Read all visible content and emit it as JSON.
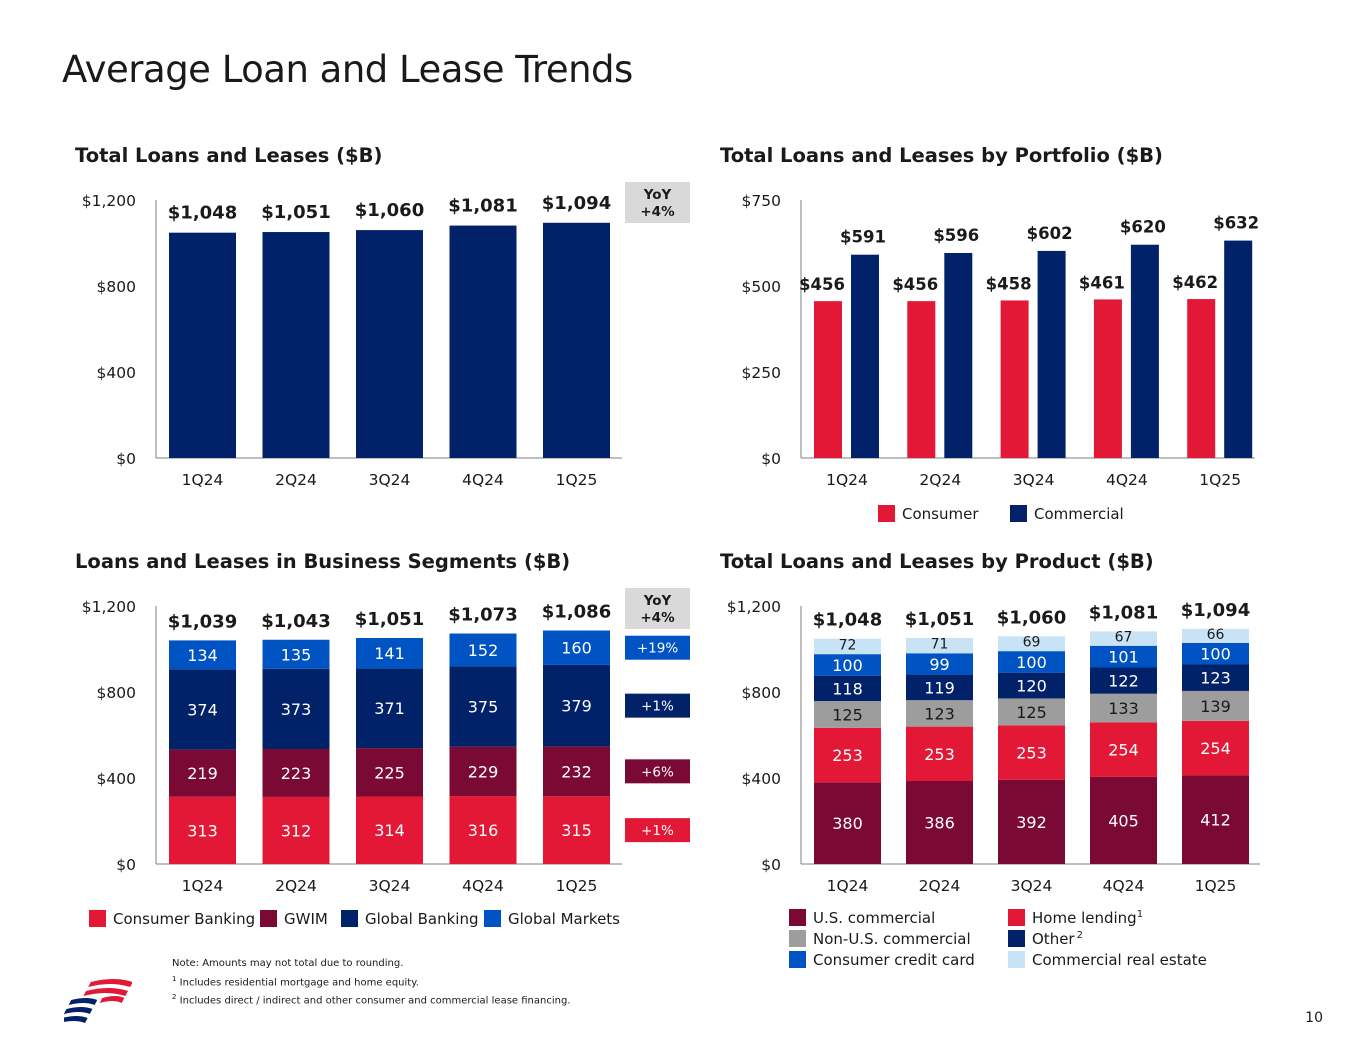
{
  "page": {
    "title": "Average Loan and Lease Trends",
    "page_number": "10",
    "notes": {
      "line1": "Note: Amounts may not total due to rounding.",
      "fn1_mark": "1",
      "fn1_text": "Includes residential mortgage and home equity.",
      "fn2_mark": "2",
      "fn2_text": "Includes direct / indirect and other consumer and commercial lease financing."
    },
    "logo_icon": "bank-flag-logo-icon"
  },
  "chart_data": [
    {
      "id": "total",
      "type": "bar",
      "title": "Total Loans and Leases ($B)",
      "categories": [
        "1Q24",
        "2Q24",
        "3Q24",
        "4Q24",
        "1Q25"
      ],
      "values": [
        1048,
        1051,
        1060,
        1081,
        1094
      ],
      "value_labels": [
        "$1,048",
        "$1,051",
        "$1,060",
        "$1,081",
        "$1,094"
      ],
      "ylim": [
        0,
        1200
      ],
      "yticks": [
        0,
        400,
        800,
        1200
      ],
      "ytick_labels": [
        "$0",
        "$400",
        "$800",
        "$1,200"
      ],
      "color": "#012169",
      "yoy": {
        "label": "YoY",
        "value": "+4%"
      }
    },
    {
      "id": "portfolio",
      "type": "bar",
      "title": "Total Loans and Leases by Portfolio ($B)",
      "categories": [
        "1Q24",
        "2Q24",
        "3Q24",
        "4Q24",
        "1Q25"
      ],
      "ylim": [
        0,
        750
      ],
      "yticks": [
        0,
        250,
        500,
        750
      ],
      "ytick_labels": [
        "$0",
        "$250",
        "$500",
        "$750"
      ],
      "series": [
        {
          "name": "Consumer",
          "color": "#e31837",
          "values": [
            456,
            456,
            458,
            461,
            462
          ],
          "labels": [
            "$456",
            "$456",
            "$458",
            "$461",
            "$462"
          ]
        },
        {
          "name": "Commercial",
          "color": "#012169",
          "values": [
            591,
            596,
            602,
            620,
            632
          ],
          "labels": [
            "$591",
            "$596",
            "$602",
            "$620",
            "$632"
          ]
        }
      ]
    },
    {
      "id": "segments",
      "type": "bar",
      "stacked": true,
      "title": "Loans and Leases in Business Segments ($B)",
      "categories": [
        "1Q24",
        "2Q24",
        "3Q24",
        "4Q24",
        "1Q25"
      ],
      "ylim": [
        0,
        1200
      ],
      "yticks": [
        0,
        400,
        800,
        1200
      ],
      "ytick_labels": [
        "$0",
        "$400",
        "$800",
        "$1,200"
      ],
      "totals": [
        "$1,039",
        "$1,043",
        "$1,051",
        "$1,073",
        "$1,086"
      ],
      "series": [
        {
          "name": "Consumer Banking",
          "color": "#e31837",
          "values": [
            313,
            312,
            314,
            316,
            315
          ],
          "yoy": "+1%"
        },
        {
          "name": "GWIM",
          "color": "#7a0a33",
          "values": [
            219,
            223,
            225,
            229,
            232
          ],
          "yoy": "+6%"
        },
        {
          "name": "Global Banking",
          "color": "#012169",
          "values": [
            374,
            373,
            371,
            375,
            379
          ],
          "yoy": "+1%"
        },
        {
          "name": "Global Markets",
          "color": "#0053c2",
          "values": [
            134,
            135,
            141,
            152,
            160
          ],
          "yoy": "+19%"
        }
      ],
      "yoy": {
        "label": "YoY",
        "value": "+4%"
      }
    },
    {
      "id": "product",
      "type": "bar",
      "stacked": true,
      "title": "Total Loans and Leases by Product ($B)",
      "categories": [
        "1Q24",
        "2Q24",
        "3Q24",
        "4Q24",
        "1Q25"
      ],
      "ylim": [
        0,
        1200
      ],
      "yticks": [
        0,
        400,
        800,
        1200
      ],
      "ytick_labels": [
        "$0",
        "$400",
        "$800",
        "$1,200"
      ],
      "totals": [
        "$1,048",
        "$1,051",
        "$1,060",
        "$1,081",
        "$1,094"
      ],
      "series": [
        {
          "name": "U.S. commercial",
          "color": "#7a0a33",
          "text": "#ffffff",
          "values": [
            380,
            386,
            392,
            405,
            412
          ]
        },
        {
          "name": "Home lending",
          "sup": "1",
          "color": "#e31837",
          "text": "#ffffff",
          "values": [
            253,
            253,
            253,
            254,
            254
          ]
        },
        {
          "name": "Non-U.S. commercial",
          "color": "#9d9d9d",
          "text": "#1a1a1a",
          "values": [
            125,
            123,
            125,
            133,
            139
          ]
        },
        {
          "name": "Other",
          "sup": "2",
          "color": "#012169",
          "text": "#ffffff",
          "values": [
            118,
            119,
            120,
            122,
            123
          ]
        },
        {
          "name": "Consumer credit card",
          "color": "#0053c2",
          "text": "#ffffff",
          "values": [
            100,
            99,
            100,
            101,
            100
          ]
        },
        {
          "name": "Commercial real estate",
          "color": "#c9e3f6",
          "text": "#1a1a1a",
          "values": [
            72,
            71,
            69,
            67,
            66
          ]
        }
      ]
    }
  ],
  "colors": {
    "text": "#1a1a1a",
    "axis": "#7f7f7f",
    "yoy_box": "#d9d9d9"
  }
}
